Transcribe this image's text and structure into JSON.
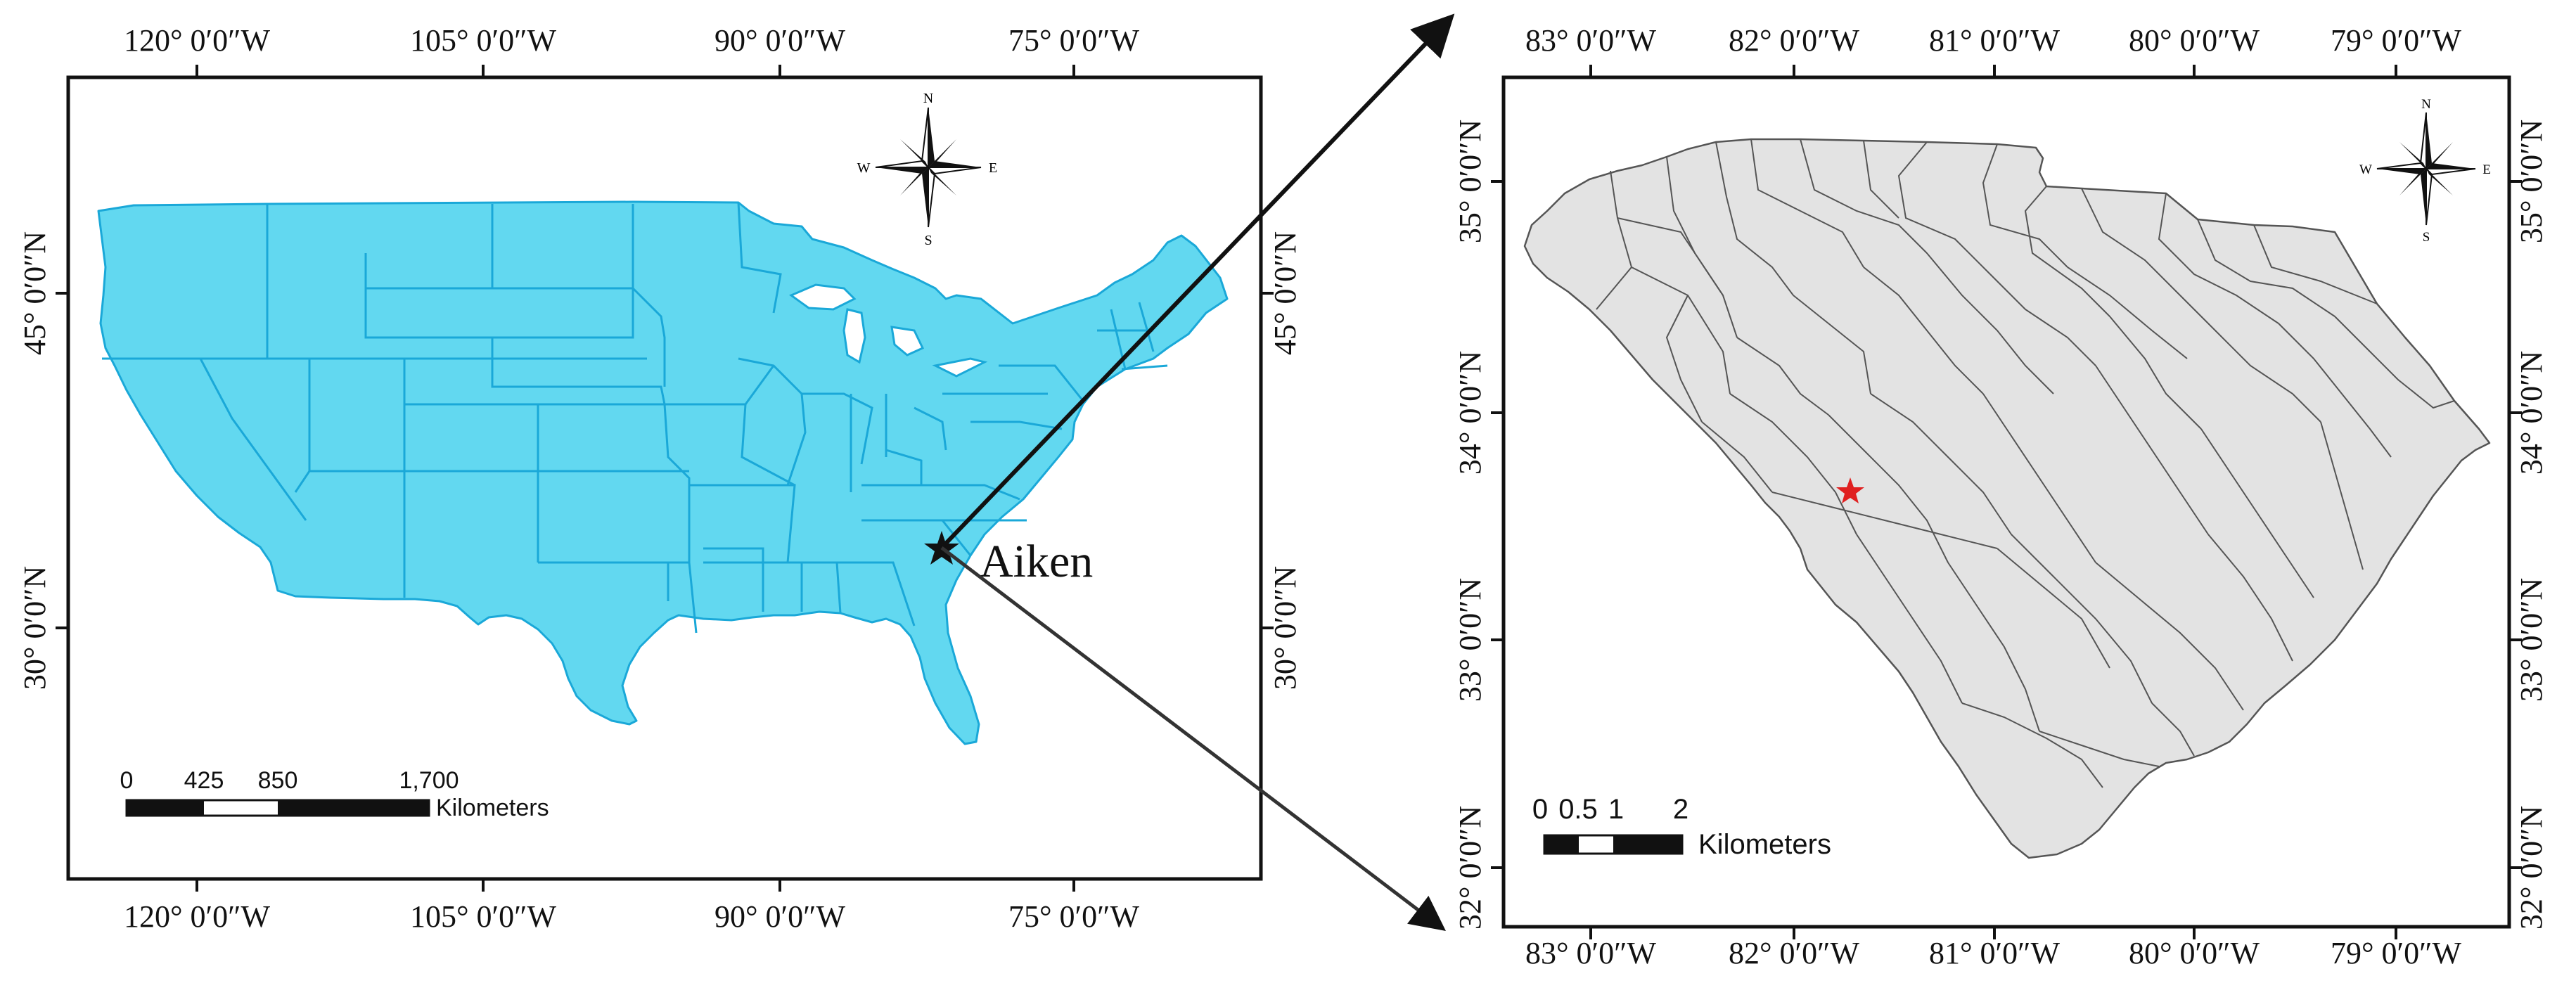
{
  "left_map": {
    "top_ticks": [
      "120° 0′0″W",
      "105° 0′0″W",
      "90° 0′0″W",
      "75° 0′0″W"
    ],
    "bottom_ticks": [
      "120° 0′0″W",
      "105° 0′0″W",
      "90° 0′0″W",
      "75° 0′0″W"
    ],
    "side_ticks": [
      "45° 0′0″N",
      "30° 0′0″N"
    ],
    "place_label": "Aiken",
    "fill_color": "#62d8f0",
    "border_color": "#1aa8d8",
    "compass": {
      "n": "N",
      "s": "S",
      "e": "E",
      "w": "W"
    },
    "scalebar": {
      "labels": [
        "0",
        "425",
        "850",
        "1,700"
      ],
      "unit": "Kilometers"
    }
  },
  "right_map": {
    "top_ticks": [
      "83° 0′0″W",
      "82° 0′0″W",
      "81° 0′0″W",
      "80° 0′0″W",
      "79° 0′0″W"
    ],
    "bottom_ticks": [
      "83° 0′0″W",
      "82° 0′0″W",
      "81° 0′0″W",
      "80° 0′0″W",
      "79° 0′0″W"
    ],
    "side_ticks": [
      "35° 0′0″N",
      "34° 0′0″N",
      "33° 0′0″N",
      "32° 0′0″N"
    ],
    "fill_color": "#e3e3e3",
    "border_color": "#555555",
    "marker_color": "#e02020",
    "compass": {
      "n": "N",
      "s": "S",
      "e": "E",
      "w": "W"
    },
    "scalebar": {
      "labels": [
        "0",
        "0.5",
        "1",
        "2"
      ],
      "unit": "Kilometers"
    }
  }
}
